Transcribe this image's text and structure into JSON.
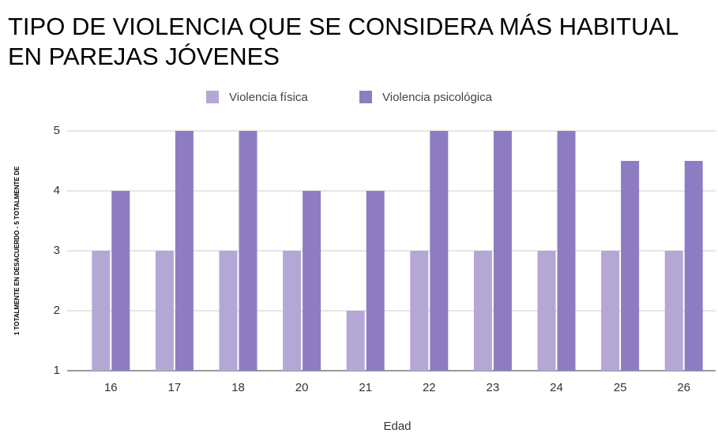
{
  "chart_data": {
    "type": "bar",
    "title": [
      "TIPO DE VIOLENCIA QUE SE CONSIDERA MÁS HABITUAL",
      "EN PAREJAS JÓVENES"
    ],
    "x_label": "Edad",
    "y_label": "1 TOTALMENTE EN DESACUERDO - 5 TOTALMENTE DE",
    "categories": [
      "16",
      "17",
      "18",
      "20",
      "21",
      "22",
      "23",
      "24",
      "25",
      "26"
    ],
    "series": [
      {
        "name": "Violencia física",
        "color": "#b4a7d6",
        "values": [
          3,
          3,
          3,
          3,
          2,
          3,
          3,
          3,
          3,
          3
        ]
      },
      {
        "name": "Violencia psicológica",
        "color": "#8e7cc3",
        "values": [
          4,
          5,
          5,
          4,
          4,
          5,
          5,
          5,
          4.5,
          4.5
        ]
      }
    ],
    "ylim": [
      1,
      5
    ],
    "yticks": [
      1,
      2,
      3,
      4,
      5
    ],
    "grid": true,
    "legend": "top"
  }
}
